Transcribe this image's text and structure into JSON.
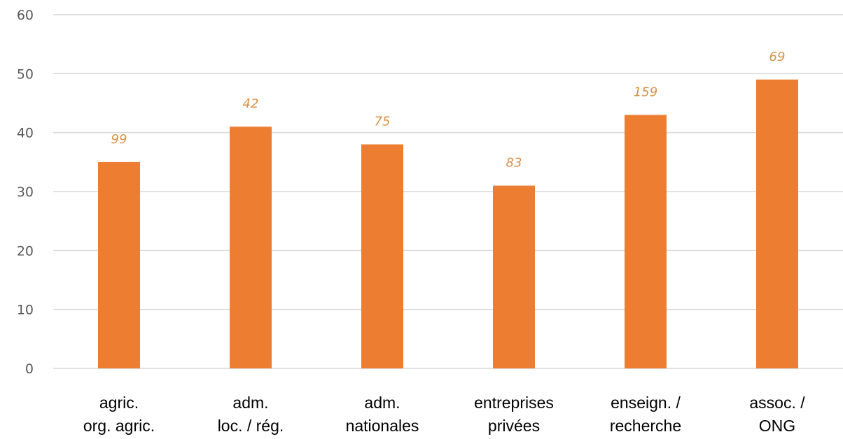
{
  "chart_data": {
    "type": "bar",
    "title": "",
    "xlabel": "",
    "ylabel": "",
    "ylim": [
      0,
      60
    ],
    "yticks": [
      0,
      10,
      20,
      30,
      40,
      50,
      60
    ],
    "grid": true,
    "legend": "none",
    "categories": [
      [
        "agric.",
        "org. agric."
      ],
      [
        "adm.",
        "loc. / rég."
      ],
      [
        "adm.",
        "nationales"
      ],
      [
        "entreprises",
        "privées"
      ],
      [
        "enseign. /",
        "recherche"
      ],
      [
        "assoc. /",
        "ONG"
      ]
    ],
    "values": [
      35,
      41,
      38,
      31,
      43,
      49
    ],
    "data_labels": [
      "99",
      "42",
      "75",
      "83",
      "159",
      "69"
    ],
    "colors": {
      "bar": "#ed7d31",
      "data_label": "#d9924a",
      "grid": "#d9d9d9",
      "tick_text": "#595959",
      "category_text": "#000000"
    }
  }
}
